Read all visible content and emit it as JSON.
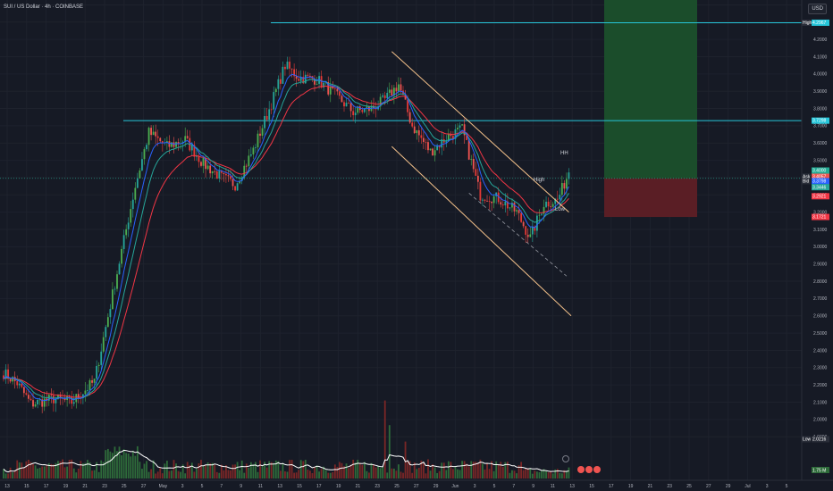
{
  "header": {
    "symbol": "SUI / US Dollar · 4h · COINBASE",
    "currency": "USD"
  },
  "colors": {
    "background": "#161a25",
    "up": "#26a69a",
    "upAlt": "#2e7d32",
    "down": "#ef5350",
    "downAlt": "#b71c1c",
    "ema_fast": "#2962ff",
    "ema_mid": "#26a69a",
    "ema_slow": "#f23645",
    "level": "#26c6da",
    "channel": "#f5c28b",
    "profit_zone": "#1b4d2b",
    "loss_zone": "#5a1e25",
    "volume_ma": "#ffffff"
  },
  "price_axis": {
    "ticks": [
      "4.5000",
      "4.4000",
      "4.3000",
      "4.2000",
      "4.1000",
      "4.0000",
      "3.9000",
      "3.8000",
      "3.7000",
      "3.6000",
      "3.5000",
      "3.4000",
      "3.3000",
      "3.2000",
      "3.1000",
      "3.0000",
      "2.9000",
      "2.8000",
      "2.7000",
      "2.6000",
      "2.5000",
      "2.4000",
      "2.3000",
      "2.2000",
      "2.1000",
      "2.0000",
      "1.9000"
    ],
    "tags": [
      {
        "text": "4.2967",
        "label": "High",
        "price": 4.2967,
        "color": "#26c6da"
      },
      {
        "text": "3.7298",
        "label": "",
        "price": 3.7298,
        "color": "#26c6da"
      },
      {
        "text": "3.4057",
        "label": "Ask",
        "price": 3.4057,
        "color": "#ef5350"
      },
      {
        "text": "3.4000",
        "label": "",
        "price": 3.3955,
        "color": "#22ab94"
      },
      {
        "text": "3.3798",
        "label": "Bid",
        "price": 3.3798,
        "color": "#2962ff"
      },
      {
        "text": "3.3446",
        "label": "",
        "price": 3.3446,
        "color": "#26a69a"
      },
      {
        "text": "3.2921",
        "label": "",
        "price": 3.2921,
        "color": "#f23645"
      },
      {
        "text": "3.1721",
        "label": "",
        "price": 3.1721,
        "color": "#f23645"
      },
      {
        "text": "2.0216",
        "label": "Low",
        "price": 2.0216,
        "color": "#2a2e39"
      }
    ],
    "volume_tag": "1.75 M"
  },
  "time_axis": {
    "labels": [
      "13",
      "15",
      "17",
      "19",
      "21",
      "23",
      "25",
      "27",
      "May",
      "3",
      "5",
      "7",
      "9",
      "11",
      "13",
      "15",
      "17",
      "19",
      "21",
      "23",
      "25",
      "27",
      "29",
      "Jun",
      "3",
      "5",
      "7",
      "9",
      "11",
      "13",
      "15",
      "17",
      "19",
      "21",
      "23",
      "25",
      "27",
      "29",
      "Jul",
      "3",
      "5"
    ]
  },
  "annotations": {
    "hh": "HH",
    "high": "High",
    "low": "Low"
  },
  "chart_data": {
    "type": "candlestick",
    "description_fields": [
      "anchors are approximate close prices read from the price axis"
    ],
    "anchors": [
      {
        "bar": 0,
        "price": 2.27
      },
      {
        "bar": 6,
        "price": 2.21
      },
      {
        "bar": 12,
        "price": 2.09
      },
      {
        "bar": 22,
        "price": 2.12
      },
      {
        "bar": 30,
        "price": 2.1
      },
      {
        "bar": 40,
        "price": 2.22
      },
      {
        "bar": 50,
        "price": 2.85
      },
      {
        "bar": 58,
        "price": 3.35
      },
      {
        "bar": 64,
        "price": 3.66
      },
      {
        "bar": 72,
        "price": 3.58
      },
      {
        "bar": 80,
        "price": 3.62
      },
      {
        "bar": 88,
        "price": 3.48
      },
      {
        "bar": 96,
        "price": 3.4
      },
      {
        "bar": 102,
        "price": 3.36
      },
      {
        "bar": 110,
        "price": 3.56
      },
      {
        "bar": 118,
        "price": 3.83
      },
      {
        "bar": 124,
        "price": 4.05
      },
      {
        "bar": 130,
        "price": 3.98
      },
      {
        "bar": 138,
        "price": 3.97
      },
      {
        "bar": 146,
        "price": 3.88
      },
      {
        "bar": 154,
        "price": 3.78
      },
      {
        "bar": 162,
        "price": 3.8
      },
      {
        "bar": 168,
        "price": 3.85
      },
      {
        "bar": 174,
        "price": 3.94
      },
      {
        "bar": 180,
        "price": 3.7
      },
      {
        "bar": 188,
        "price": 3.55
      },
      {
        "bar": 196,
        "price": 3.64
      },
      {
        "bar": 202,
        "price": 3.68
      },
      {
        "bar": 210,
        "price": 3.3
      },
      {
        "bar": 218,
        "price": 3.28
      },
      {
        "bar": 226,
        "price": 3.2
      },
      {
        "bar": 232,
        "price": 3.05
      },
      {
        "bar": 238,
        "price": 3.25
      },
      {
        "bar": 244,
        "price": 3.27
      },
      {
        "bar": 249,
        "price": 3.43
      }
    ],
    "levels": [
      4.2967,
      3.7298
    ],
    "channel_top": [
      [
        171,
        4.13
      ],
      [
        249,
        3.2
      ]
    ],
    "channel_bottom": [
      [
        171,
        3.58
      ],
      [
        250,
        2.6
      ]
    ],
    "trade_zone": {
      "entry": 3.3955,
      "target": 4.55,
      "stop": 3.1721
    },
    "volume_max": "1.75 M"
  }
}
